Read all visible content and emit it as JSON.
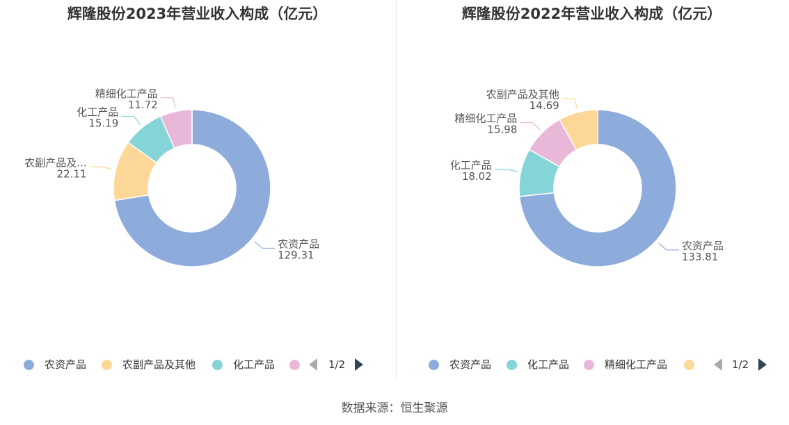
{
  "colors": {
    "blue": "#8dabdb",
    "yellow": "#fcd797",
    "teal": "#85d5d8",
    "pink": "#e9b8d8"
  },
  "source": "数据来源：恒生聚源",
  "chart_data": [
    {
      "type": "pie",
      "donut": true,
      "title": "辉隆股份2023年营业收入构成（亿元）",
      "slices": [
        {
          "name": "农资产品",
          "label": "农资产品",
          "value": 129.31,
          "value_text": "129.31",
          "color": "#8dabdb"
        },
        {
          "name": "农副产品及其他",
          "label": "农副产品及...",
          "value": 22.11,
          "value_text": "22.11",
          "color": "#fcd797"
        },
        {
          "name": "化工产品",
          "label": "化工产品",
          "value": 15.19,
          "value_text": "15.19",
          "color": "#85d5d8"
        },
        {
          "name": "精细化工产品",
          "label": "精细化工产品",
          "value": 11.72,
          "value_text": "11.72",
          "color": "#e9b8d8"
        }
      ],
      "legend": {
        "position": "bottom",
        "items": [
          {
            "label": "农资产品",
            "color": "#8dabdb"
          },
          {
            "label": "农副产品及其他",
            "color": "#fcd797"
          },
          {
            "label": "化工产品",
            "color": "#85d5d8"
          },
          {
            "label": "",
            "color": "#e9b8d8"
          }
        ],
        "page": "1/2"
      }
    },
    {
      "type": "pie",
      "donut": true,
      "title": "辉隆股份2022年营业收入构成（亿元）",
      "slices": [
        {
          "name": "农资产品",
          "label": "农资产品",
          "value": 133.81,
          "value_text": "133.81",
          "color": "#8dabdb"
        },
        {
          "name": "化工产品",
          "label": "化工产品",
          "value": 18.02,
          "value_text": "18.02",
          "color": "#85d5d8"
        },
        {
          "name": "精细化工产品",
          "label": "精细化工产品",
          "value": 15.98,
          "value_text": "15.98",
          "color": "#e9b8d8"
        },
        {
          "name": "农副产品及其他",
          "label": "农副产品及其他",
          "value": 14.69,
          "value_text": "14.69",
          "color": "#fcd797"
        }
      ],
      "legend": {
        "position": "bottom",
        "items": [
          {
            "label": "农资产品",
            "color": "#8dabdb"
          },
          {
            "label": "化工产品",
            "color": "#85d5d8"
          },
          {
            "label": "精细化工产品",
            "color": "#e9b8d8"
          },
          {
            "label": "",
            "color": "#fcd797"
          }
        ],
        "page": "1/2"
      }
    }
  ]
}
